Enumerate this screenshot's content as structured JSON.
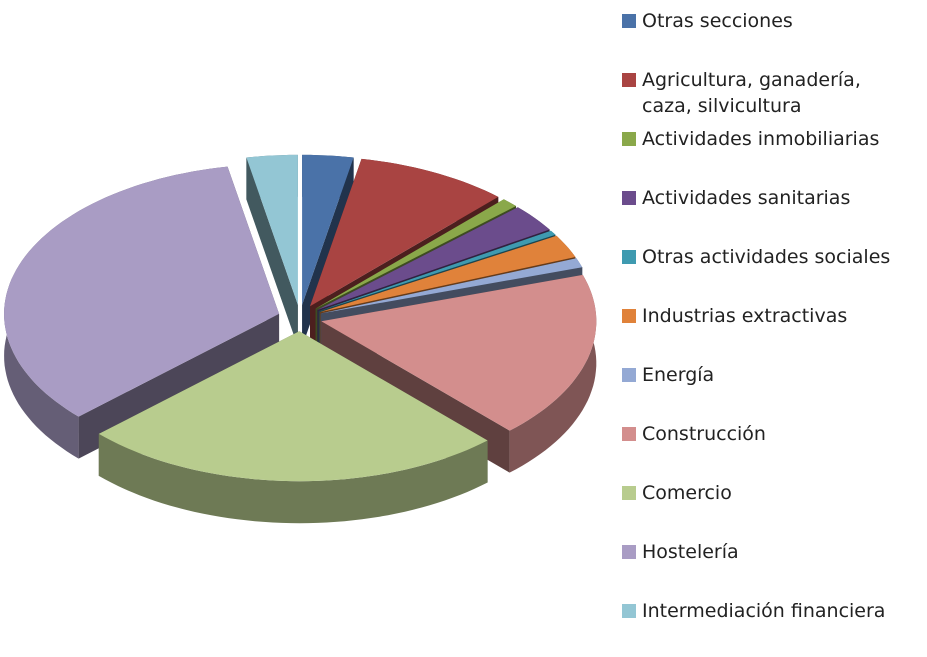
{
  "chart_data": {
    "type": "pie3d",
    "categories": [
      "Otras secciones",
      "Agricultura, ganadería, caza, silvicultura",
      "Actividades inmobiliarias",
      "Actividades sanitarias",
      "Otras actividades sociales",
      "Industrias extractivas",
      "Energía",
      "Construcción",
      "Comercio",
      "Hostelería",
      "Intermediación financiera"
    ],
    "values": [
      3,
      9,
      1,
      3,
      0.5,
      2.5,
      1,
      18,
      25,
      34,
      3
    ],
    "colors": [
      "#4a72a8",
      "#a94442",
      "#8aa84a",
      "#6b4c8c",
      "#3e9ab0",
      "#e0823a",
      "#94a9d4",
      "#d38e8d",
      "#b8cc8e",
      "#a99cc4",
      "#93c6d4"
    ],
    "legend": "right"
  }
}
